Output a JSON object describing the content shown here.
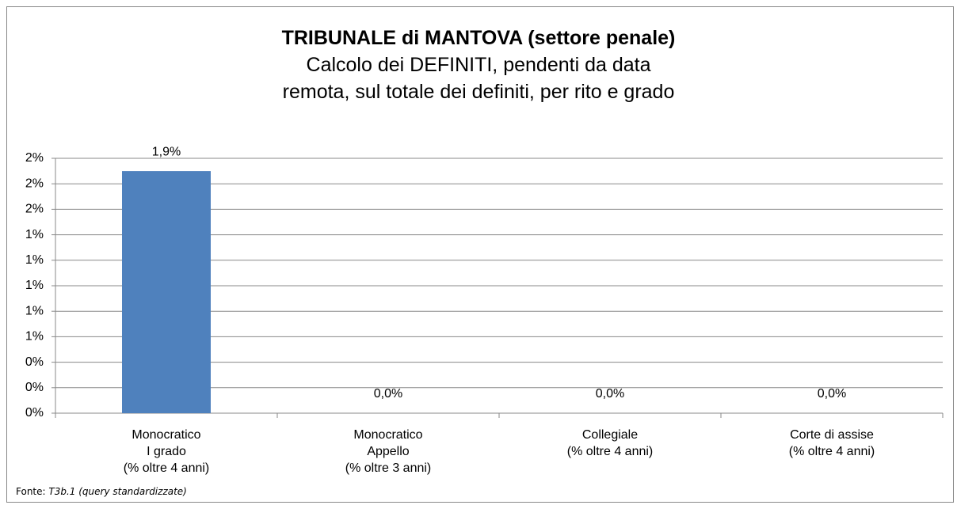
{
  "chart_data": {
    "type": "bar",
    "title": "TRIBUNALE di MANTOVA (settore penale)",
    "subtitle": "Calcolo dei DEFINITI, pendenti da data remota, sul totale dei definiti, per rito e grado",
    "categories": [
      "Monocratico\nI grado\n(% oltre 4 anni)",
      "Monocratico\nAppello\n(% oltre 3 anni)",
      "Collegiale\n(% oltre 4 anni)",
      "Corte di assise\n(% oltre 4 anni)"
    ],
    "values": [
      1.9,
      0,
      0,
      0
    ],
    "value_labels": [
      "1,9%",
      "0,0%",
      "0,0%",
      "0,0%"
    ],
    "color": "#4f81bd",
    "ylim": [
      0,
      2
    ],
    "yticks": [
      {
        "value": 0,
        "label": "0%"
      },
      {
        "value": 0.2,
        "label": "0%"
      },
      {
        "value": 0.4,
        "label": "0%"
      },
      {
        "value": 0.6,
        "label": "1%"
      },
      {
        "value": 0.8,
        "label": "1%"
      },
      {
        "value": 1.0,
        "label": "1%"
      },
      {
        "value": 1.2,
        "label": "1%"
      },
      {
        "value": 1.4,
        "label": "1%"
      },
      {
        "value": 1.6,
        "label": "2%"
      },
      {
        "value": 1.8,
        "label": "2%"
      },
      {
        "value": 2.0,
        "label": "2%"
      }
    ],
    "grid": true,
    "source": {
      "prefix": "Fonte:",
      "text": "T3b.1 (query standardizzate)"
    }
  }
}
